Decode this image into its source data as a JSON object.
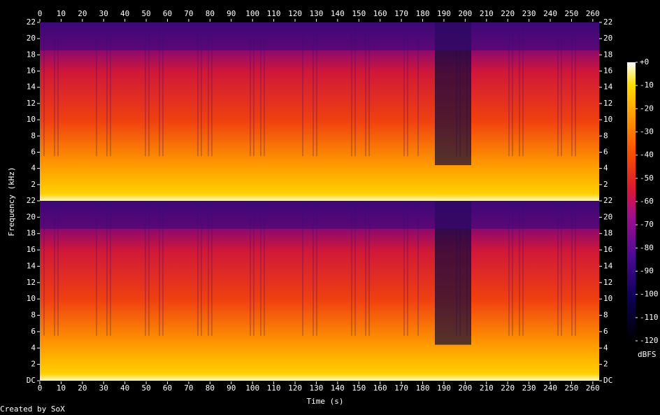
{
  "chart_data": {
    "type": "spectrogram",
    "xlabel": "Time (s)",
    "ylabel": "Frequency (kHz)",
    "credit": "Created by SoX",
    "xlim": [
      0,
      263
    ],
    "xticks": [
      0,
      10,
      20,
      30,
      40,
      50,
      60,
      70,
      80,
      90,
      100,
      110,
      120,
      130,
      140,
      150,
      160,
      170,
      180,
      190,
      200,
      210,
      220,
      230,
      240,
      250,
      260
    ],
    "panels": [
      {
        "ylim": [
          0,
          22
        ],
        "yticks": [
          2,
          4,
          6,
          8,
          10,
          12,
          14,
          16,
          18,
          20,
          22
        ]
      },
      {
        "ylim": [
          0,
          22
        ],
        "yticks": [
          {
            "value": 0,
            "label": "DC"
          },
          2,
          4,
          6,
          8,
          10,
          12,
          14,
          16,
          18,
          20,
          22
        ]
      }
    ],
    "colorbar": {
      "label": "dBFS",
      "lim": [
        -120,
        0
      ],
      "ticks": [
        {
          "value": 0,
          "label": "+0"
        },
        -10,
        -20,
        -30,
        -40,
        -50,
        -60,
        -70,
        -80,
        -90,
        -100,
        -110,
        -120
      ]
    }
  }
}
